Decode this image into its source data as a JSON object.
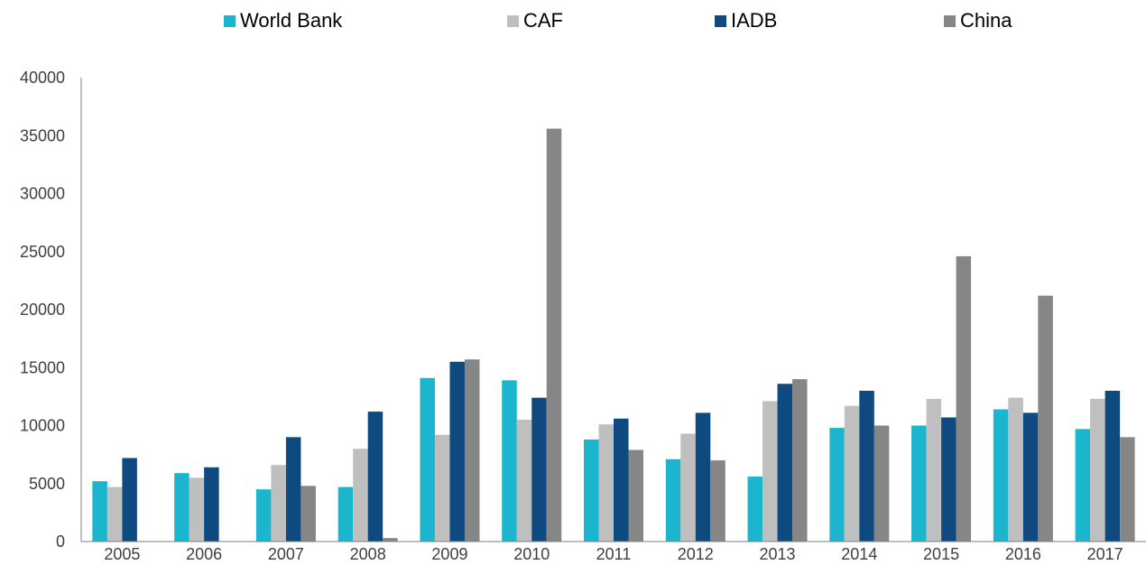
{
  "chart_data": {
    "type": "bar",
    "title": "",
    "xlabel": "",
    "ylabel": "",
    "categories": [
      "2005",
      "2006",
      "2007",
      "2008",
      "2009",
      "2010",
      "2011",
      "2012",
      "2013",
      "2014",
      "2015",
      "2016",
      "2017"
    ],
    "ylim": [
      0,
      40000
    ],
    "yticks": [
      "0",
      "5000",
      "10000",
      "15000",
      "20000",
      "25000",
      "30000",
      "35000",
      "40000"
    ],
    "grid": false,
    "legend_position": "top",
    "series": [
      {
        "name": "World Bank",
        "color": "#1cb5ce",
        "values": [
          5200,
          5900,
          4500,
          4700,
          14100,
          13900,
          8800,
          7100,
          5600,
          9800,
          10000,
          11400,
          9700
        ]
      },
      {
        "name": "CAF",
        "color": "#bfbfbf",
        "values": [
          4700,
          5500,
          6600,
          8000,
          9200,
          10500,
          10100,
          9300,
          12100,
          11700,
          12300,
          12400,
          12300
        ]
      },
      {
        "name": "IADB",
        "color": "#0e4a80",
        "values": [
          7200,
          6400,
          9000,
          11200,
          15500,
          12400,
          10600,
          11100,
          13600,
          13000,
          10700,
          11100,
          13000
        ]
      },
      {
        "name": "China",
        "color": "#868686",
        "values": [
          0,
          0,
          4800,
          300,
          15700,
          35600,
          7900,
          7000,
          14000,
          10000,
          24600,
          21200,
          9000
        ]
      }
    ]
  }
}
